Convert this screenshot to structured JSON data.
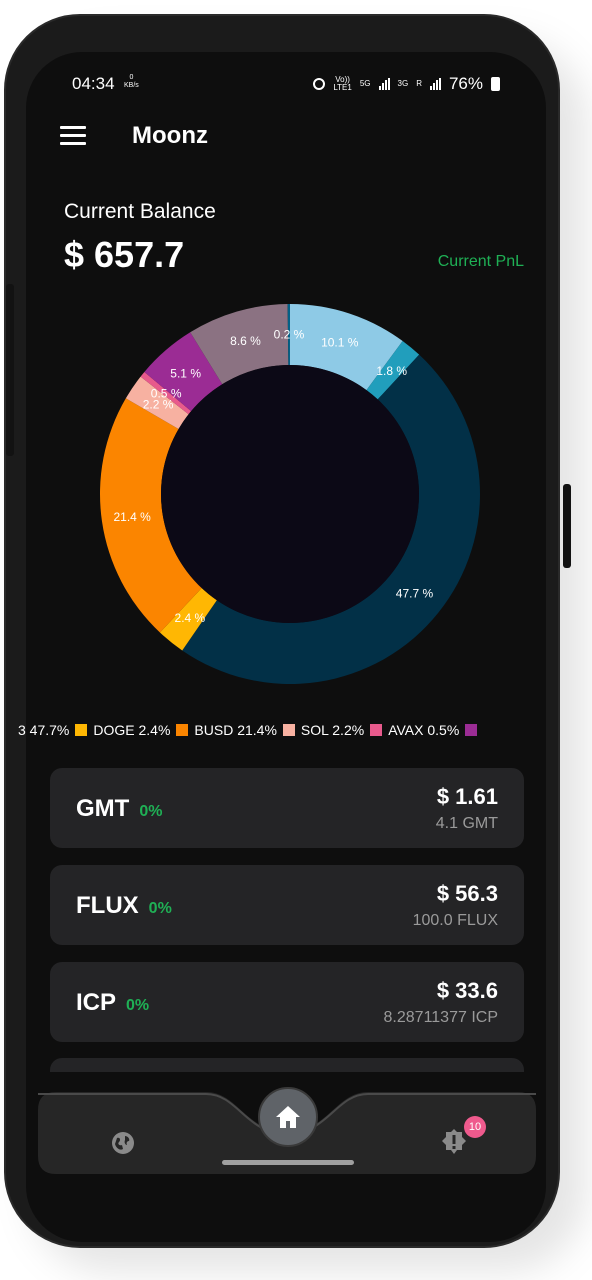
{
  "status_bar": {
    "time": "04:34",
    "net_speed_value": "0",
    "net_speed_unit": "KB/s",
    "volte": "Vo))",
    "lte": "LTE1",
    "net_5g": "5G",
    "net_3g": "3G",
    "roaming": "R",
    "battery": "76%"
  },
  "app": {
    "title": "Moonz"
  },
  "balance": {
    "label": "Current Balance",
    "value": "$ 657.7",
    "pnl_label": "Current PnL"
  },
  "chart_data": {
    "type": "pie",
    "donut": true,
    "slices": [
      {
        "label": "",
        "value": 10.1,
        "text": "10.1 %",
        "color": "#8ecae6"
      },
      {
        "label": "",
        "value": 1.8,
        "text": "1.8 %",
        "color": "#219ebc"
      },
      {
        "label": "",
        "value": 47.7,
        "text": "47.7 %",
        "color": "#023047"
      },
      {
        "label": "DOGE",
        "value": 2.4,
        "text": "2.4 %",
        "color": "#ffb703"
      },
      {
        "label": "BUSD",
        "value": 21.4,
        "text": "21.4 %",
        "color": "#fb8500"
      },
      {
        "label": "SOL",
        "value": 2.2,
        "text": "2.2 %",
        "color": "#f7b1a1"
      },
      {
        "label": "AVAX",
        "value": 0.5,
        "text": "0.5 %",
        "color": "#e85a8c"
      },
      {
        "label": "",
        "value": 5.1,
        "text": "5.1 %",
        "color": "#9b2c94"
      },
      {
        "label": "",
        "value": 8.6,
        "text": "8.6 %",
        "color": "#8b7282"
      },
      {
        "label": "",
        "value": 0.2,
        "text": "0.2 %",
        "color": "#036086"
      }
    ]
  },
  "legend": {
    "items": [
      {
        "text": "3 47.7%",
        "color": "#ffb703"
      },
      {
        "text": "DOGE 2.4%",
        "color": "#fb8500"
      },
      {
        "text": "BUSD 21.4%",
        "color": "#f7b1a1"
      },
      {
        "text": "SOL 2.2%",
        "color": "#e85a8c"
      },
      {
        "text": "AVAX 0.5%",
        "color": "#9b2c94"
      }
    ]
  },
  "coins": [
    {
      "symbol": "GMT",
      "change": "0%",
      "usd": "$ 1.61",
      "qty": "4.1 GMT"
    },
    {
      "symbol": "FLUX",
      "change": "0%",
      "usd": "$ 56.3",
      "qty": "100.0 FLUX"
    },
    {
      "symbol": "ICP",
      "change": "0%",
      "usd": "$ 33.6",
      "qty": "8.28711377 ICP"
    }
  ],
  "bottom_nav": {
    "notification_badge": "10"
  },
  "colors": {
    "accent_green": "#1fb055",
    "badge_pink": "#ef5a8d"
  }
}
